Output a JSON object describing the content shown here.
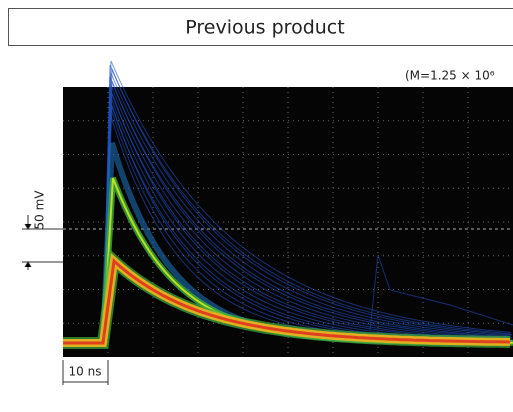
{
  "header": {
    "title": "Previous product"
  },
  "figure": {
    "note": "(M=1.25 × 10⁶",
    "vertical_scale": "50 mV",
    "horizontal_scale": "10 ns"
  }
}
